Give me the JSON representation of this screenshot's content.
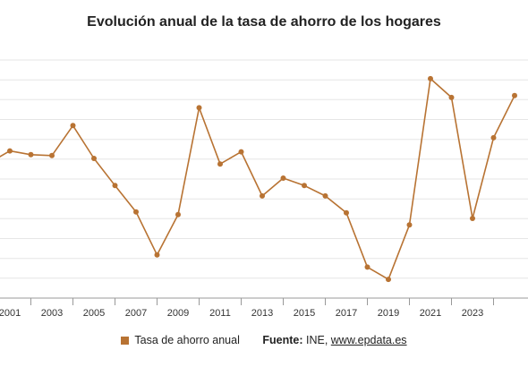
{
  "chart_data": {
    "type": "line",
    "title": "Evolución anual de la tasa de ahorro de los hogares",
    "x": [
      2000,
      2001,
      2002,
      2003,
      2004,
      2005,
      2006,
      2007,
      2008,
      2009,
      2010,
      2011,
      2012,
      2013,
      2014,
      2015,
      2016,
      2017,
      2018,
      2019,
      2020,
      2021,
      2022,
      2023,
      2024,
      2025
    ],
    "x_tick_labels": [
      "2001",
      "2003",
      "2005",
      "2007",
      "2009",
      "2011",
      "2013",
      "2015",
      "2017",
      "2019",
      "2021",
      "2023"
    ],
    "series": [
      {
        "name": "Tasa de ahorro anual",
        "color": "#b87333",
        "values": [
          11.0,
          11.65,
          11.45,
          11.4,
          13.0,
          11.25,
          9.8,
          8.4,
          6.1,
          8.25,
          13.95,
          10.95,
          11.6,
          9.25,
          10.2,
          9.8,
          9.25,
          8.35,
          5.45,
          4.8,
          7.7,
          15.5,
          14.5,
          8.05,
          12.35,
          14.6
        ]
      }
    ],
    "ylim": [
      3.8,
      16.5
    ],
    "grid": true,
    "legend": "bottom"
  },
  "legend": {
    "series_label": "Tasa de ahorro anual",
    "source_label": "Fuente:",
    "source_text": "INE,",
    "source_link": "www.epdata.es"
  }
}
